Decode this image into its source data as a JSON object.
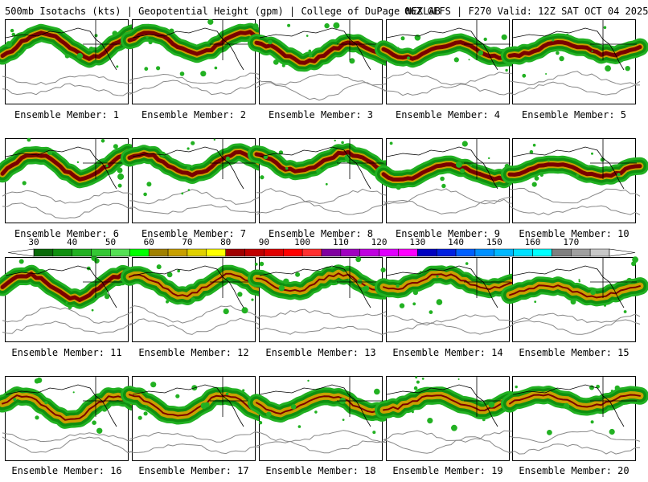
{
  "header": {
    "left": "500mb Isotachs (kts) | Geopotential Height (gpm) | College of DuPage NEXLAB",
    "right": "06Z GEFS | F270 Valid: 12Z SAT OCT 04 2025"
  },
  "colorbar": {
    "labels": [
      "30",
      "40",
      "50",
      "60",
      "70",
      "80",
      "90",
      "100",
      "110",
      "120",
      "130",
      "140",
      "150",
      "160",
      "170"
    ],
    "colors": [
      "#0a6a0a",
      "#0f8f0f",
      "#22b122",
      "#34c734",
      "#55e055",
      "#00ff00",
      "#a08000",
      "#c8a000",
      "#e0d000",
      "#ffff00",
      "#a00000",
      "#c00000",
      "#e00000",
      "#ff0000",
      "#ff3030",
      "#8000a0",
      "#a000c0",
      "#c000e0",
      "#e000ff",
      "#ff00ff",
      "#0000c0",
      "#0020e0",
      "#0060ff",
      "#0090ff",
      "#00b8ff",
      "#00e0ff",
      "#00ffff",
      "#808080",
      "#a0a0a0",
      "#c8c8c8"
    ]
  },
  "members": [
    {
      "label": "Ensemble Member: 1"
    },
    {
      "label": "Ensemble Member: 2"
    },
    {
      "label": "Ensemble Member: 3"
    },
    {
      "label": "Ensemble Member: 4"
    },
    {
      "label": "Ensemble Member: 5"
    },
    {
      "label": "Ensemble Member: 6"
    },
    {
      "label": "Ensemble Member: 7"
    },
    {
      "label": "Ensemble Member: 8"
    },
    {
      "label": "Ensemble Member: 9"
    },
    {
      "label": "Ensemble Member: 10"
    },
    {
      "label": "Ensemble Member: 11"
    },
    {
      "label": "Ensemble Member: 12"
    },
    {
      "label": "Ensemble Member: 13"
    },
    {
      "label": "Ensemble Member: 14"
    },
    {
      "label": "Ensemble Member: 15"
    },
    {
      "label": "Ensemble Member: 16"
    },
    {
      "label": "Ensemble Member: 17"
    },
    {
      "label": "Ensemble Member: 18"
    },
    {
      "label": "Ensemble Member: 19"
    },
    {
      "label": "Ensemble Member: 20"
    }
  ]
}
